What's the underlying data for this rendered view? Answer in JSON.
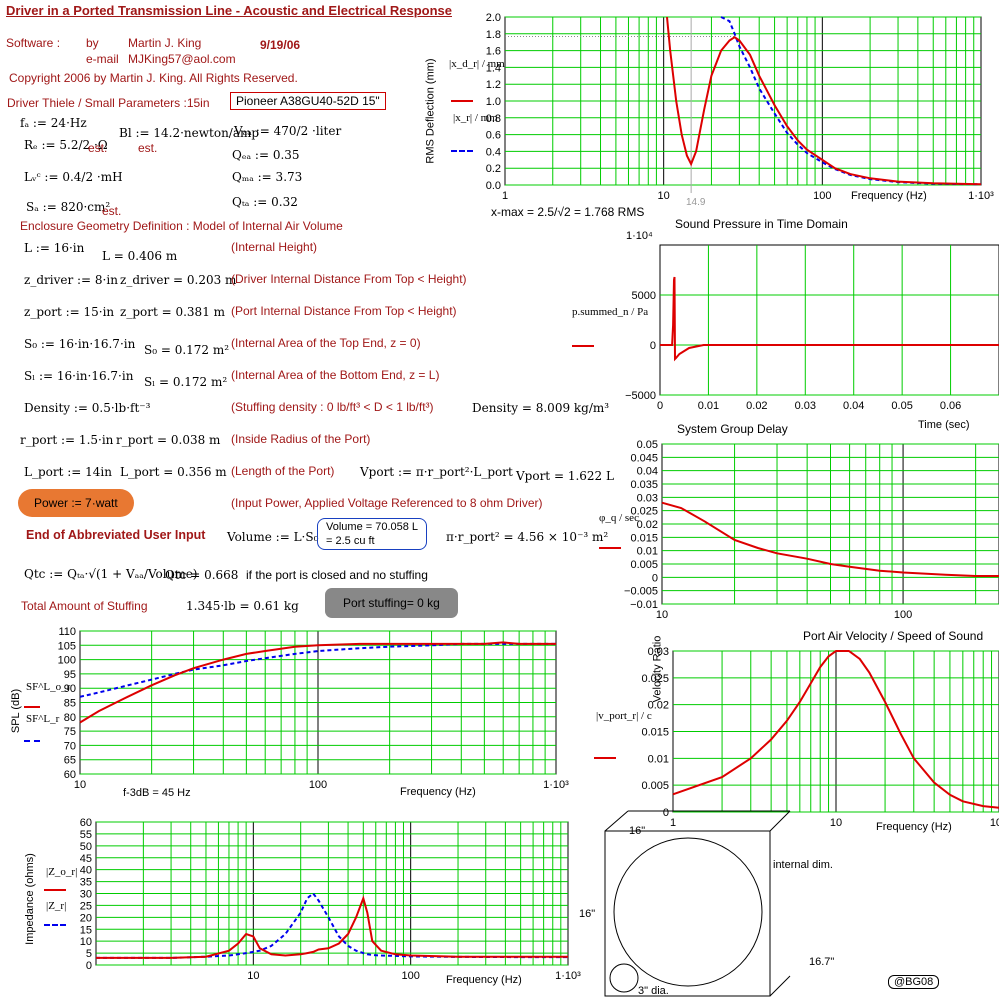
{
  "header": {
    "title": "Driver in a Ported Transmission Line - Acoustic and Electrical Response",
    "software_label": "Software :",
    "by_label": "by",
    "author": "Martin J. King",
    "date": "9/19/06",
    "email_label": "e-mail",
    "email": "MJKing57@aol.com",
    "copyright": "Copyright 2006 by Martin J. King. All Rights Reserved."
  },
  "driver": {
    "section_label": "Driver Thiele / Small Parameters :15in",
    "model": "Pioneer A38GU40-52D 15\"",
    "fd": "fₐ := 24·Hz",
    "re": "Rₑ := 5.2/2 ·Ω",
    "re_est": "est.",
    "bl": "Bl := 14.2·newton/amp",
    "bl_est": "est.",
    "vad": "Vₐₐ := 470/2 ·liter",
    "qed": "Qₑₐ := 0.35",
    "lvc": "Lᵥᶜ := 0.4/2 ·mH",
    "qmd": "Qₘₐ := 3.73",
    "sd": "Sₐ := 820·cm²",
    "sd_est": "est.",
    "qtd": "Qₜₐ := 0.32"
  },
  "enclosure": {
    "section_label": "Enclosure Geometry Definition : Model of Internal Air Volume",
    "rows": [
      {
        "input": "L := 16·in",
        "result": "L = 0.406 m",
        "desc": "(Internal Height)"
      },
      {
        "input": "z_driver := 8·in",
        "result": "z_driver = 0.203 m",
        "desc": "(Driver Internal Distance From Top < Height)"
      },
      {
        "input": "z_port := 15·in",
        "result": "z_port = 0.381 m",
        "desc": "(Port Internal Distance From Top < Height)"
      },
      {
        "input": "S₀ := 16·in·16.7·in",
        "result": "S₀ = 0.172 m²",
        "desc": "(Internal Area of the Top End, z = 0)"
      },
      {
        "input": "Sₗ := 16·in·16.7·in",
        "result": "Sₗ = 0.172 m²",
        "desc": "(Internal Area of the Bottom End, z = L)"
      },
      {
        "input": "Density := 0.5·lb·ft⁻³",
        "result": "Density = 8.009 kg/m³",
        "desc": "(Stuffing density : 0 lb/ft³ < D < 1 lb/ft³)"
      },
      {
        "input": "r_port := 1.5·in",
        "result": "r_port = 0.038 m",
        "desc": "(Inside Radius of the Port)"
      },
      {
        "input": "L_port := 14in",
        "result": "L_port = 0.356 m",
        "desc": "(Length of the Port)"
      }
    ],
    "vport_def": "Vport := π·r_port²·L_port",
    "vport_val": "Vport = 1.622 L",
    "power": "Power := 7·watt",
    "power_desc": "(Input Power, Applied Voltage Referenced to 8 ohm Driver)",
    "end_label": "End of Abbreviated User Input",
    "volume_def": "Volume := L·S₀",
    "volume_val": "Volume = 70.058 L",
    "volume_cuft": "=   2.5 cu ft",
    "port_area": "π·r_port² = 4.56 × 10⁻³ m²",
    "qtc_def": "Qtc := Qₜₐ·√(1 + Vₐₐ/Volume)",
    "qtc_val": "Qtc = 0.668",
    "qtc_note": "if the port is closed and no stuffing",
    "stuffing_label": "Total Amount of Stuffing",
    "stuffing_val": "1.345·lb = 0.61 kg",
    "port_stuffing": "Port stuffing=  0  kg"
  },
  "deflection_chart": {
    "ylabel": "RMS Deflection (mm)",
    "legend_red": "|x_d_r| / mm",
    "legend_blue": "|x_r| / mm",
    "xlabel": "Frequency (Hz)",
    "xmax_label": "x-max  =  2.5/√2 = 1.768  RMS",
    "marker": "14.9"
  },
  "pressure_chart": {
    "title": "Sound Pressure in Time Domain",
    "legend": "p.summed_n / Pa",
    "xlabel": "Time (sec)",
    "exp_label": "1·10⁴"
  },
  "delay_chart": {
    "title": "System Group Delay",
    "legend": "φ_q / sec"
  },
  "spl_chart": {
    "ylabel": "SPL (dB)",
    "legend_red": "SF^L_o_r",
    "legend_blue": "SF^L_r",
    "xlabel": "Frequency (Hz)",
    "f3db": "f-3dB = 45 Hz"
  },
  "velocity_chart": {
    "title": "Port Air Velocity / Speed of Sound",
    "ylabel": "Velocity Ratio",
    "legend": "|v_port_r| / c",
    "xlabel": "Frequency (Hz)"
  },
  "impedance_chart": {
    "ylabel": "Impedance (ohms)",
    "legend_red": "|Z_o_r|",
    "legend_blue": "|Z_r|",
    "xlabel": "Frequency (Hz)"
  },
  "diagram": {
    "width": "16\"",
    "height": "16\"",
    "depth": "16.7\"",
    "internal": "internal dim.",
    "port": "3\" dia.",
    "badge": "@BG08"
  },
  "colors": {
    "red": "#dd0000",
    "blue": "#0000ee",
    "grid": "#00cc00"
  },
  "chart_data": [
    {
      "type": "line",
      "title": "",
      "xlabel": "Frequency (Hz)",
      "ylabel": "RMS Deflection (mm)",
      "xscale": "log",
      "xlim": [
        1,
        1000
      ],
      "ylim": [
        0,
        2
      ],
      "x": [
        10.5,
        11,
        12,
        13,
        14,
        14.9,
        16,
        18,
        20,
        23,
        26,
        28,
        30,
        35,
        40,
        50,
        60,
        70,
        80,
        100,
        120,
        150,
        200,
        300,
        500,
        1000
      ],
      "series": [
        {
          "name": "|x_d_r|",
          "values": [
            2.0,
            1.6,
            1.0,
            0.6,
            0.35,
            0.25,
            0.4,
            0.9,
            1.3,
            1.6,
            1.72,
            1.76,
            1.72,
            1.55,
            1.3,
            0.95,
            0.7,
            0.53,
            0.42,
            0.3,
            0.2,
            0.13,
            0.08,
            0.04,
            0.02,
            0.01
          ]
        },
        {
          "name": "|x_r|",
          "values": [
            null,
            null,
            null,
            null,
            null,
            null,
            null,
            null,
            null,
            2.0,
            1.95,
            1.8,
            1.65,
            1.4,
            1.15,
            0.85,
            0.62,
            0.48,
            0.38,
            0.27,
            0.19,
            0.12,
            0.07,
            0.035,
            0.015,
            0.008
          ]
        }
      ]
    },
    {
      "type": "line",
      "title": "Sound Pressure in Time Domain",
      "xlabel": "Time (sec)",
      "ylabel": "",
      "xlim": [
        0,
        0.07
      ],
      "ylim": [
        -5000,
        10000
      ]
    },
    {
      "type": "line",
      "title": "System Group Delay",
      "xscale": "log",
      "xlim": [
        10,
        250
      ],
      "ylim": [
        -0.01,
        0.05
      ],
      "x": [
        10,
        12,
        15,
        20,
        25,
        30,
        40,
        50,
        60,
        80,
        100,
        150,
        200,
        250
      ],
      "series": [
        {
          "name": "φ_q",
          "values": [
            0.028,
            0.026,
            0.021,
            0.014,
            0.011,
            0.009,
            0.007,
            0.005,
            0.004,
            0.0025,
            0.0018,
            0.001,
            0.0005,
            0.0005
          ]
        }
      ]
    },
    {
      "type": "line",
      "xlabel": "Frequency (Hz)",
      "ylabel": "SPL (dB)",
      "xscale": "log",
      "xlim": [
        10,
        1000
      ],
      "ylim": [
        60,
        110
      ],
      "x": [
        10,
        12,
        15,
        20,
        25,
        30,
        40,
        50,
        60,
        80,
        100,
        150,
        200,
        300,
        400,
        500,
        600,
        700,
        800,
        1000
      ],
      "series": [
        {
          "name": "SF^L_o_r",
          "values": [
            78,
            82,
            86,
            91,
            94.5,
            97,
            100,
            102,
            103,
            104.5,
            105,
            105.5,
            105.5,
            105.5,
            105.5,
            105.5,
            106,
            105.5,
            105.5,
            105.5
          ]
        },
        {
          "name": "SF^L_r",
          "values": [
            87,
            88.5,
            90.5,
            93,
            95,
            96.5,
            98,
            99.5,
            100.5,
            102,
            103,
            104,
            104.5,
            105,
            105.5,
            105.5,
            105.5,
            105.5,
            105.5,
            105.5
          ]
        }
      ]
    },
    {
      "type": "line",
      "title": "Port Air Velocity / Speed of Sound",
      "xlabel": "Frequency (Hz)",
      "ylabel": "Velocity Ratio",
      "xscale": "log",
      "xlim": [
        1,
        100
      ],
      "ylim": [
        0,
        0.03
      ],
      "x": [
        1,
        2,
        3,
        4,
        5,
        6,
        7,
        8,
        9,
        10,
        12,
        14,
        16,
        20,
        25,
        30,
        40,
        50,
        60,
        80,
        100
      ],
      "series": [
        {
          "name": "|v_port_r|",
          "values": [
            0.0033,
            0.0065,
            0.01,
            0.0135,
            0.017,
            0.0205,
            0.024,
            0.027,
            0.029,
            0.03,
            0.03,
            0.0285,
            0.026,
            0.0205,
            0.0145,
            0.01,
            0.0055,
            0.0032,
            0.002,
            0.0011,
            0.0008
          ]
        }
      ]
    },
    {
      "type": "line",
      "xlabel": "Frequency (Hz)",
      "ylabel": "Impedance (ohms)",
      "xscale": "log",
      "xlim": [
        1,
        1000
      ],
      "ylim": [
        0,
        60
      ],
      "x": [
        1,
        3,
        5,
        7,
        8,
        9,
        10,
        11,
        13,
        16,
        20,
        22,
        24,
        26,
        30,
        35,
        40,
        45,
        50,
        53,
        57,
        65,
        80,
        100,
        200,
        500,
        1000
      ],
      "series": [
        {
          "name": "|Z_o_r|",
          "values": [
            3,
            3,
            3.5,
            6,
            9,
            13,
            12,
            7,
            4.5,
            4,
            4.5,
            5,
            5.5,
            6.5,
            7,
            9,
            13,
            20,
            28,
            22,
            10,
            6,
            4.5,
            4,
            3.5,
            3.5,
            3.5
          ]
        },
        {
          "name": "|Z_r|",
          "values": [
            3,
            3,
            3.5,
            4,
            4.5,
            5,
            5.5,
            6,
            8,
            13,
            22,
            28,
            30,
            27,
            20,
            12,
            8,
            6,
            5,
            4.5,
            4.2,
            4,
            3.8,
            3.6,
            3.4,
            3.3,
            3.3
          ]
        }
      ]
    }
  ]
}
